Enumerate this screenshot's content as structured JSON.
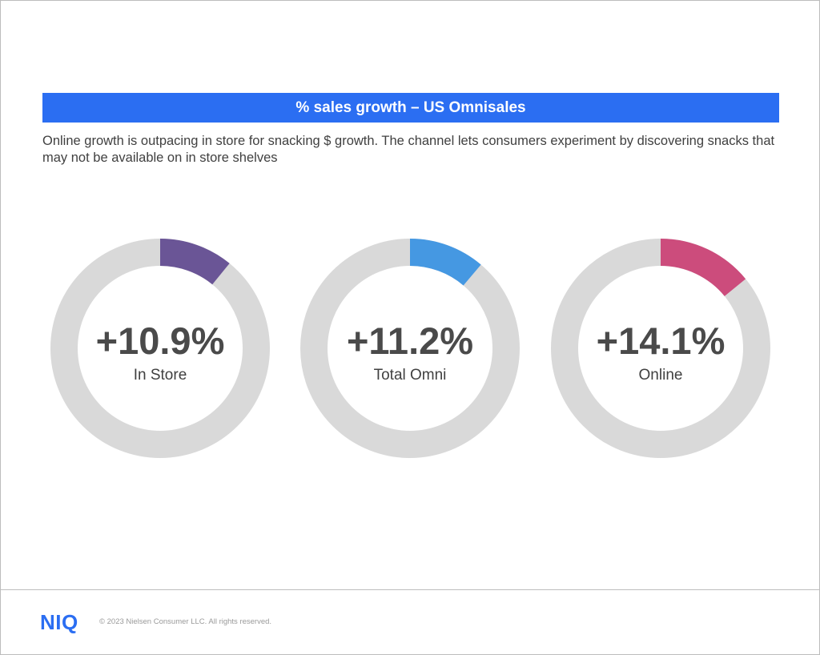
{
  "header": {
    "title": "% sales growth – US Omnisales",
    "subtitle": "Online growth is outpacing in store for snacking $ growth. The channel lets consumers experiment by discovering snacks that may not be available on in store shelves"
  },
  "colors": {
    "accent": "#2b6ef2",
    "track": "#d9d9d9",
    "value_text": "#4a4a4a",
    "label_text": "#404040"
  },
  "chart_data": {
    "type": "pie",
    "subtype": "donut",
    "series": [
      {
        "name": "In Store",
        "value": 10.9,
        "display": "+10.9%",
        "color": "#6a5596"
      },
      {
        "name": "Total Omni",
        "value": 11.2,
        "display": "+11.2%",
        "color": "#4598e2"
      },
      {
        "name": "Online",
        "value": 14.1,
        "display": "+14.1%",
        "color": "#cc4c7c"
      }
    ]
  },
  "footer": {
    "logo": "NIQ",
    "copyright": "© 2023 Nielsen Consumer LLC.  All rights reserved."
  }
}
